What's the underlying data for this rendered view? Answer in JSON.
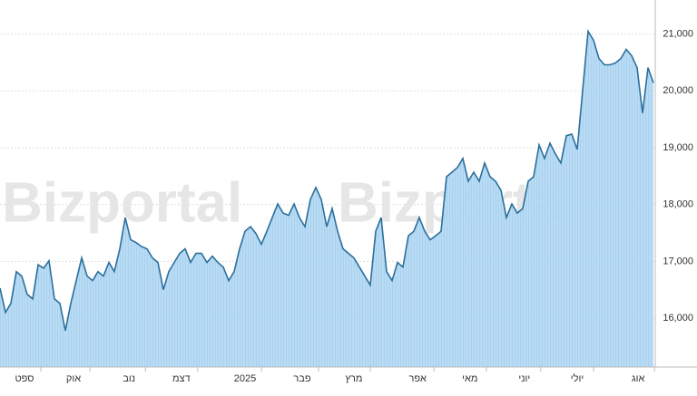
{
  "chart_data": {
    "type": "area",
    "watermark": "Bizportal",
    "color": "#2b6f9c",
    "fill": "#b5daf3",
    "values": [
      16530,
      16100,
      16260,
      16820,
      16740,
      16420,
      16340,
      16940,
      16880,
      17010,
      16340,
      16260,
      15780,
      16260,
      16660,
      17060,
      16740,
      16660,
      16820,
      16740,
      16980,
      16820,
      17220,
      17770,
      17380,
      17330,
      17260,
      17220,
      17060,
      16980,
      16500,
      16820,
      16980,
      17140,
      17220,
      16980,
      17140,
      17140,
      16980,
      17090,
      16980,
      16900,
      16660,
      16820,
      17220,
      17530,
      17610,
      17490,
      17300,
      17530,
      17770,
      18010,
      17850,
      17810,
      18010,
      17770,
      17610,
      18090,
      18300,
      18090,
      17610,
      17930,
      17530,
      17220,
      17140,
      17060,
      16900,
      16740,
      16580,
      17530,
      17770,
      16820,
      16660,
      16980,
      16900,
      17450,
      17530,
      17770,
      17530,
      17380,
      17450,
      17530,
      18490,
      18570,
      18650,
      18810,
      18410,
      18570,
      18410,
      18730,
      18490,
      18410,
      18250,
      17770,
      18010,
      17850,
      17930,
      18410,
      18490,
      19050,
      18810,
      19080,
      18890,
      18730,
      19210,
      19240,
      18970,
      20010,
      21050,
      20890,
      20570,
      20460,
      20460,
      20490,
      20570,
      20730,
      20620,
      20410,
      19610,
      20410,
      20140
    ],
    "xlim": [
      0,
      120
    ],
    "xticks": [
      {
        "value": 4.5,
        "label": "ספט"
      },
      {
        "value": 13.5,
        "label": "אוק"
      },
      {
        "value": 23.7,
        "label": "נוב"
      },
      {
        "value": 33.3,
        "label": "דצמ"
      },
      {
        "value": 45,
        "label": "2025"
      },
      {
        "value": 55.5,
        "label": "פבר"
      },
      {
        "value": 65,
        "label": "מרץ"
      },
      {
        "value": 76.7,
        "label": "אפר"
      },
      {
        "value": 86.3,
        "label": "מאי"
      },
      {
        "value": 96.3,
        "label": "יוני"
      },
      {
        "value": 106,
        "label": "יולי"
      },
      {
        "value": 117.2,
        "label": "אוג"
      }
    ],
    "ylim": [
      15140,
      21600
    ],
    "yticks": [
      {
        "value": 16000,
        "label": "16,000"
      },
      {
        "value": 17000,
        "label": "17,000"
      },
      {
        "value": 18000,
        "label": "18,000"
      },
      {
        "value": 19000,
        "label": "19,000"
      },
      {
        "value": 20000,
        "label": "20,000"
      },
      {
        "value": 21000,
        "label": "21,000"
      }
    ],
    "grid": true
  }
}
